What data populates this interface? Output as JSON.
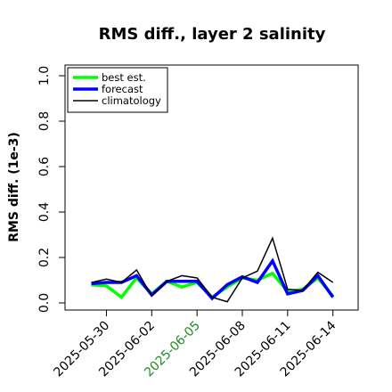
{
  "chart_data": {
    "type": "line",
    "title": "RMS diff., layer 2 salinity",
    "xlabel": "",
    "ylabel": "RMS diff. (1e-3)",
    "ylim": [
      0.0,
      1.0
    ],
    "yticks": [
      "0.0",
      "0.2",
      "0.4",
      "0.6",
      "0.8",
      "1.0"
    ],
    "xticks": [
      {
        "label": "2025-05-30",
        "color": "#000000"
      },
      {
        "label": "2025-06-02",
        "color": "#000000"
      },
      {
        "label": "2025-06-05",
        "color": "#228B22"
      },
      {
        "label": "2025-06-08",
        "color": "#000000"
      },
      {
        "label": "2025-06-11",
        "color": "#000000"
      },
      {
        "label": "2025-06-14",
        "color": "#000000"
      }
    ],
    "x": [
      "2025-05-29",
      "2025-05-30",
      "2025-05-31",
      "2025-06-01",
      "2025-06-02",
      "2025-06-03",
      "2025-06-04",
      "2025-06-05",
      "2025-06-06",
      "2025-06-07",
      "2025-06-08",
      "2025-06-09",
      "2025-06-10",
      "2025-06-11",
      "2025-06-12",
      "2025-06-13",
      "2025-06-14"
    ],
    "legend_position": "top-left",
    "series": [
      {
        "name": "best est.",
        "color": "#00ff00",
        "width": 3.5,
        "values": [
          0.08,
          0.075,
          0.025,
          0.11,
          0.04,
          0.095,
          0.07,
          0.09,
          0.025,
          0.07,
          0.11,
          0.1,
          0.13,
          0.05,
          0.06,
          0.11,
          0.03
        ]
      },
      {
        "name": "forecast",
        "color": "#0000ff",
        "width": 3.5,
        "values": [
          0.085,
          0.09,
          0.09,
          0.12,
          0.035,
          0.095,
          0.095,
          0.095,
          0.02,
          0.08,
          0.115,
          0.09,
          0.185,
          0.04,
          0.055,
          0.12,
          0.025
        ]
      },
      {
        "name": "climatology",
        "color": "#000000",
        "width": 1.5,
        "values": [
          0.09,
          0.105,
          0.09,
          0.145,
          0.03,
          0.095,
          0.12,
          0.11,
          0.025,
          0.005,
          0.11,
          0.14,
          0.285,
          0.06,
          0.055,
          0.135,
          0.09
        ]
      }
    ]
  }
}
